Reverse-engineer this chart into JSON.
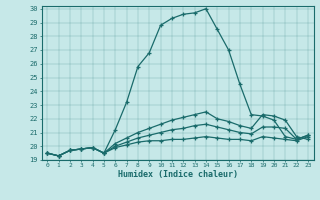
{
  "xlabel": "Humidex (Indice chaleur)",
  "ylabel": "",
  "background_color": "#c6e8e8",
  "line_color": "#1a6b6b",
  "xlim": [
    -0.5,
    23.5
  ],
  "ylim": [
    19,
    30.2
  ],
  "xtick_vals": [
    0,
    1,
    2,
    3,
    4,
    5,
    6,
    7,
    8,
    9,
    10,
    11,
    12,
    13,
    14,
    15,
    16,
    17,
    18,
    19,
    20,
    21,
    22,
    23
  ],
  "xtick_labels": [
    "0",
    "1",
    "2",
    "3",
    "4",
    "5",
    "6",
    "7",
    "8",
    "9",
    "10",
    "11",
    "12",
    "13",
    "14",
    "15",
    "16",
    "17",
    "18",
    "19",
    "20",
    "21",
    "22",
    "23"
  ],
  "ytick_vals": [
    19,
    20,
    21,
    22,
    23,
    24,
    25,
    26,
    27,
    28,
    29,
    30
  ],
  "ytick_labels": [
    "19",
    "20",
    "21",
    "22",
    "23",
    "24",
    "25",
    "26",
    "27",
    "28",
    "29",
    "30"
  ],
  "series": [
    {
      "x": [
        0,
        1,
        2,
        3,
        4,
        5,
        6,
        7,
        8,
        9,
        10,
        11,
        12,
        13,
        14,
        15,
        16,
        17,
        18,
        19,
        20,
        21,
        22,
        23
      ],
      "y": [
        19.5,
        19.3,
        19.7,
        19.8,
        19.9,
        19.5,
        21.2,
        23.2,
        25.8,
        26.8,
        28.8,
        29.3,
        29.6,
        29.7,
        30.0,
        28.5,
        27.0,
        24.5,
        22.3,
        22.2,
        21.9,
        20.7,
        20.5,
        20.8
      ]
    },
    {
      "x": [
        0,
        1,
        2,
        3,
        4,
        5,
        6,
        7,
        8,
        9,
        10,
        11,
        12,
        13,
        14,
        15,
        16,
        17,
        18,
        19,
        20,
        21,
        22,
        23
      ],
      "y": [
        19.5,
        19.3,
        19.7,
        19.8,
        19.9,
        19.5,
        20.2,
        20.6,
        21.0,
        21.3,
        21.6,
        21.9,
        22.1,
        22.3,
        22.5,
        22.0,
        21.8,
        21.5,
        21.3,
        22.3,
        22.2,
        21.9,
        20.7,
        20.5
      ]
    },
    {
      "x": [
        0,
        1,
        2,
        3,
        4,
        5,
        6,
        7,
        8,
        9,
        10,
        11,
        12,
        13,
        14,
        15,
        16,
        17,
        18,
        19,
        20,
        21,
        22,
        23
      ],
      "y": [
        19.5,
        19.3,
        19.7,
        19.8,
        19.9,
        19.5,
        20.0,
        20.3,
        20.6,
        20.8,
        21.0,
        21.2,
        21.3,
        21.5,
        21.6,
        21.4,
        21.2,
        21.0,
        20.9,
        21.4,
        21.4,
        21.3,
        20.5,
        20.8
      ]
    },
    {
      "x": [
        0,
        1,
        2,
        3,
        4,
        5,
        6,
        7,
        8,
        9,
        10,
        11,
        12,
        13,
        14,
        15,
        16,
        17,
        18,
        19,
        20,
        21,
        22,
        23
      ],
      "y": [
        19.5,
        19.3,
        19.7,
        19.8,
        19.9,
        19.5,
        19.9,
        20.1,
        20.3,
        20.4,
        20.4,
        20.5,
        20.5,
        20.6,
        20.7,
        20.6,
        20.5,
        20.5,
        20.4,
        20.7,
        20.6,
        20.5,
        20.4,
        20.7
      ]
    }
  ]
}
